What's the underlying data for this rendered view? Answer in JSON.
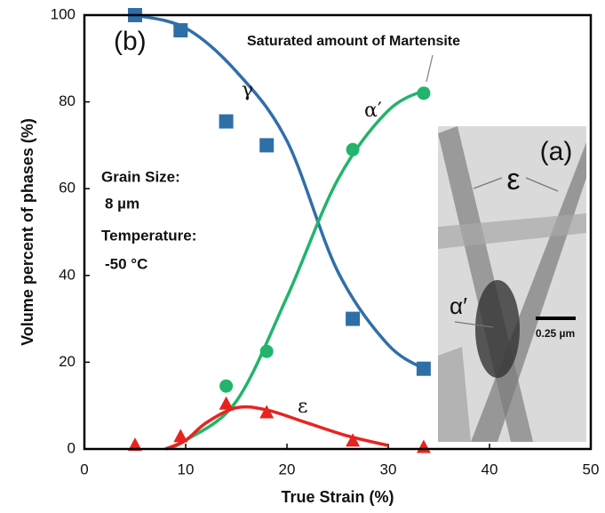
{
  "chart_data": {
    "type": "scatter",
    "x_label": "True Strain (%)",
    "y_label": "Volume percent of phases (%)",
    "xlim": [
      0,
      50
    ],
    "ylim": [
      0,
      100
    ],
    "xticks": [
      0,
      10,
      20,
      30,
      40,
      50
    ],
    "yticks": [
      0,
      20,
      40,
      60,
      80,
      100
    ],
    "series": [
      {
        "name": "γ",
        "color": "#2f6fa8",
        "marker": "square",
        "x": [
          5,
          9.5,
          14,
          18,
          26.5,
          33.5
        ],
        "values": [
          100,
          96.5,
          75.5,
          70,
          30,
          18.5
        ]
      },
      {
        "name": "α′",
        "color": "#22b46c",
        "marker": "circle",
        "x": [
          14,
          18,
          26.5,
          33.5
        ],
        "values": [
          14.5,
          22.5,
          69,
          82
        ]
      },
      {
        "name": "ε",
        "color": "#e8231f",
        "marker": "triangle",
        "x": [
          5,
          9.5,
          14,
          18,
          26.5,
          33.5
        ],
        "values": [
          1,
          3,
          10.5,
          8.5,
          2,
          0.5
        ]
      }
    ],
    "fits": [
      {
        "color": "#2f6fa8",
        "x": [
          5,
          10,
          15,
          20,
          25,
          30,
          34
        ],
        "values": [
          100,
          97,
          87,
          71,
          41,
          24,
          18
        ]
      },
      {
        "color": "#22b46c",
        "x": [
          8,
          10,
          15,
          20,
          25,
          30,
          34
        ],
        "values": [
          0,
          2,
          11,
          35,
          62,
          78,
          83
        ]
      },
      {
        "color": "#e8231f",
        "x": [
          8,
          10,
          12,
          15,
          18,
          22,
          26,
          30
        ],
        "values": [
          0,
          2,
          6,
          9.5,
          9,
          6,
          3,
          0.8
        ]
      }
    ],
    "annotations": [
      "(b)",
      "Saturated amount of Martensite",
      "Grain Size:",
      "8 µm",
      "Temperature:",
      "-50 °C"
    ],
    "inset": {
      "label": "(a)",
      "epsilon": "ε",
      "alpha": "α′",
      "scale": "0.25 µm"
    }
  }
}
